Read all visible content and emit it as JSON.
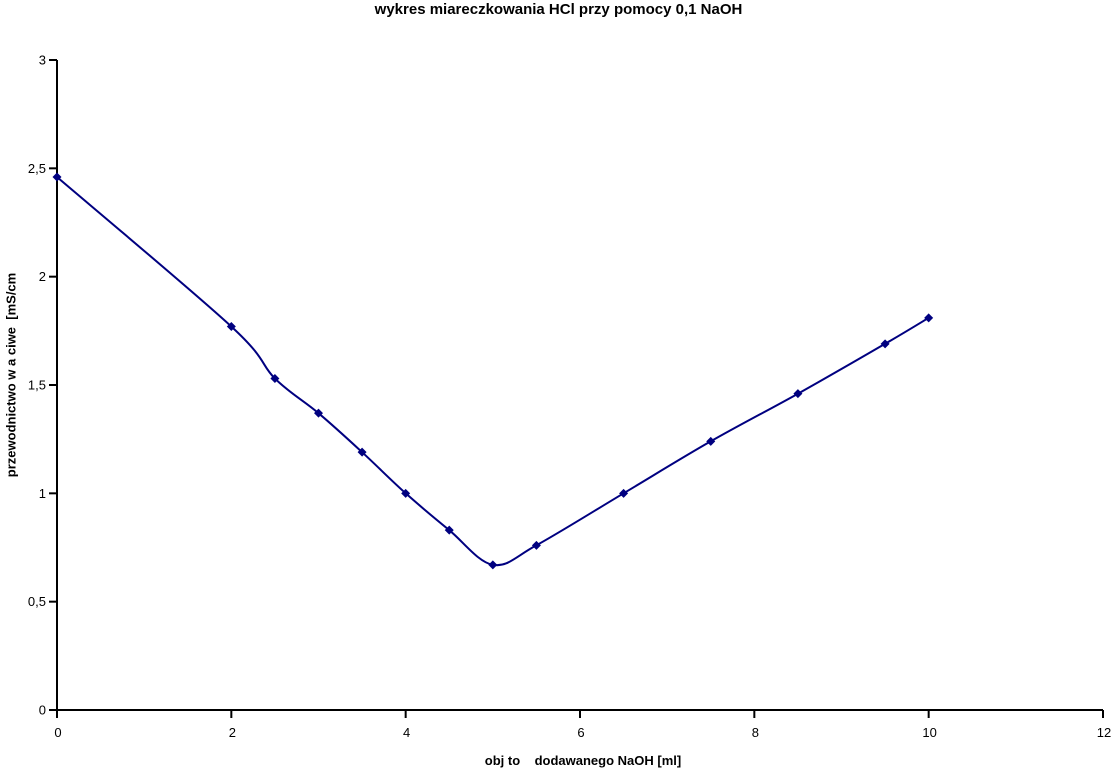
{
  "chart_data": {
    "type": "line",
    "title": "wykres miareczkowania HCl przy pomocy 0,1 NaOH",
    "xlabel": "obj to    dodawanego NaOH [ml]",
    "ylabel": "przewodnictwo w a ciwe  [mS/cm",
    "x": [
      0,
      2,
      2.5,
      3,
      3.5,
      4,
      4.5,
      5,
      5.5,
      6.5,
      7.5,
      8.5,
      9.5,
      10
    ],
    "y": [
      2.46,
      1.77,
      1.53,
      1.37,
      1.19,
      1.0,
      0.83,
      0.67,
      0.76,
      1.0,
      1.24,
      1.46,
      1.69,
      1.81
    ],
    "xlim": [
      0,
      12
    ],
    "ylim": [
      0,
      3
    ],
    "xticks": [
      0,
      2,
      4,
      6,
      8,
      10,
      12
    ],
    "xtick_labels": [
      "0",
      "2",
      "4",
      "6",
      "8",
      "10",
      "12"
    ],
    "yticks": [
      0,
      0.5,
      1,
      1.5,
      2,
      2.5,
      3
    ],
    "ytick_labels": [
      "0",
      "0,5",
      "1",
      "1,5",
      "2",
      "2,5",
      "3"
    ],
    "marker": "diamond",
    "line_style": "smooth",
    "grid": false,
    "legend": null,
    "colors": {
      "series": "#000080",
      "axis": "#000000",
      "text": "#000000",
      "background": "#ffffff"
    }
  }
}
